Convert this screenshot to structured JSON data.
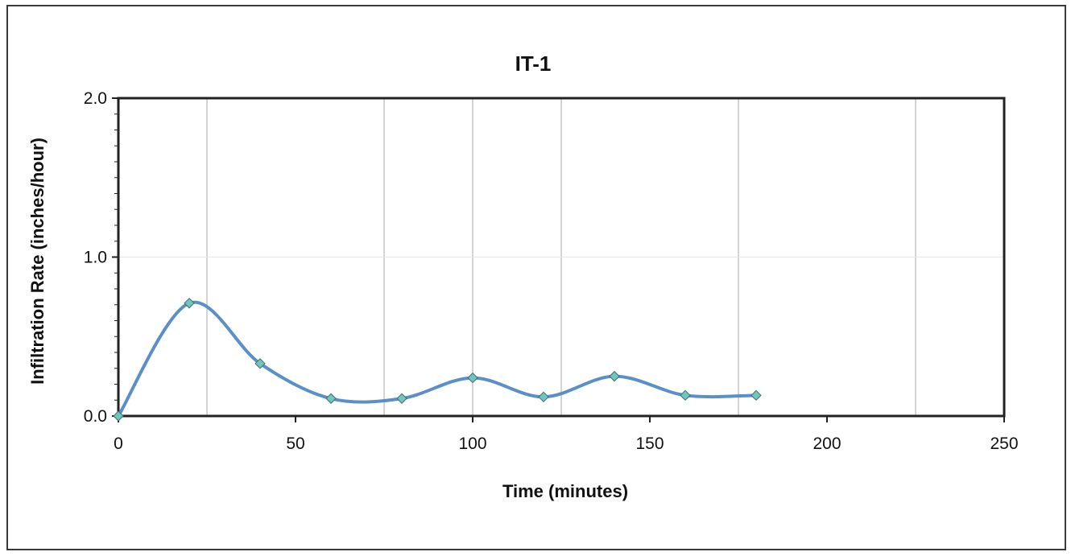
{
  "chart_data": {
    "type": "scatter",
    "title": "IT-1",
    "xlabel": "Time (minutes)",
    "ylabel": "Infiltration Rate (inches/hour)",
    "xlim": [
      0,
      250
    ],
    "ylim": [
      0,
      2.0
    ],
    "x_ticks": [
      0,
      50,
      100,
      150,
      200,
      250
    ],
    "x_tick_labels": [
      "0",
      "50",
      "100",
      "150",
      "200",
      "250"
    ],
    "y_ticks": [
      0,
      1.0,
      2.0
    ],
    "y_tick_labels": [
      "0.0",
      "1.0",
      "2.0"
    ],
    "x_gridlines": [
      25,
      75,
      100,
      125,
      175,
      225
    ],
    "grid": true,
    "legend": "none",
    "series": [
      {
        "smooth_line": true,
        "line_color": "#5b8fc7",
        "marker_color": "#6fc5c0",
        "marker_shape": "diamond",
        "x": [
          0,
          20,
          40,
          60,
          80,
          100,
          120,
          140,
          160,
          180
        ],
        "y": [
          0.0,
          0.71,
          0.33,
          0.11,
          0.11,
          0.24,
          0.12,
          0.25,
          0.13,
          0.13
        ]
      }
    ]
  }
}
